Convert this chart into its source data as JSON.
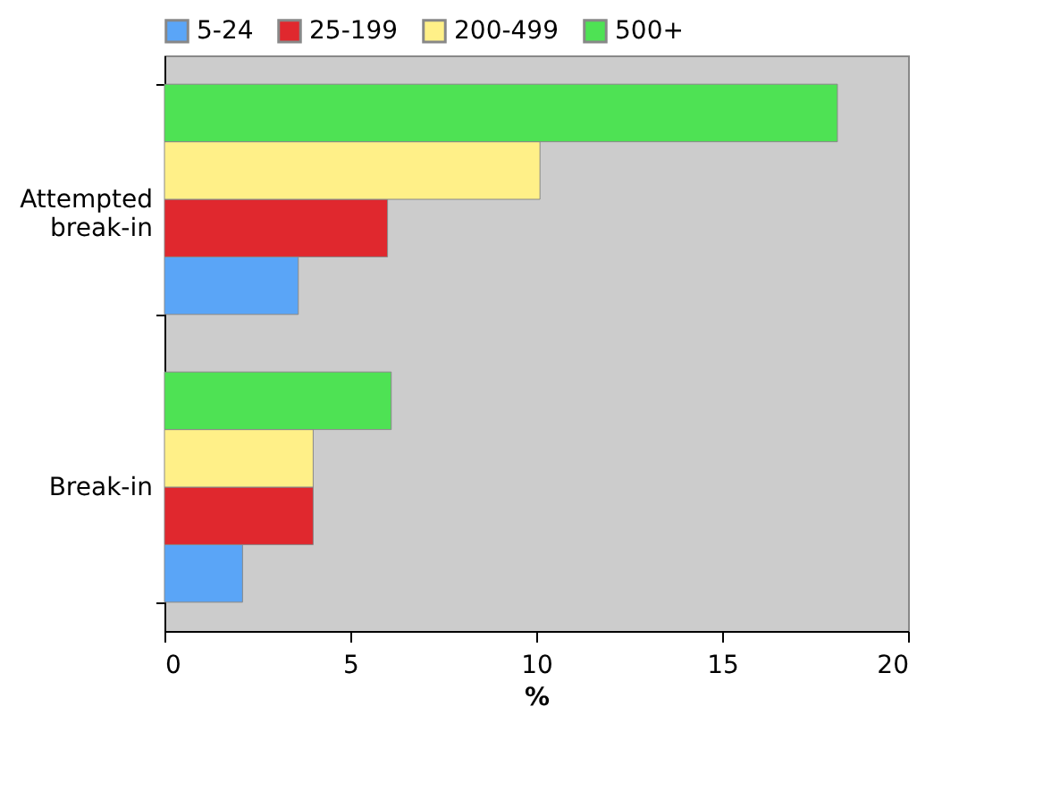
{
  "chart_data": {
    "type": "bar",
    "orientation": "horizontal",
    "xlabel": "%",
    "categories": [
      "Attempted break-in",
      "Break-in"
    ],
    "series": [
      {
        "name": "5-24",
        "color": "#5aa5f7",
        "values": [
          3.6,
          2.1
        ]
      },
      {
        "name": "25-199",
        "color": "#e0282e",
        "values": [
          6.0,
          4.0
        ]
      },
      {
        "name": "200-499",
        "color": "#fff088",
        "values": [
          10.1,
          4.0
        ]
      },
      {
        "name": "500+",
        "color": "#4ee254",
        "values": [
          18.1,
          6.1
        ]
      }
    ],
    "xlim": [
      0,
      20
    ],
    "xticks": [
      0,
      5,
      10,
      15,
      20
    ],
    "grid": false,
    "legend": "top"
  }
}
